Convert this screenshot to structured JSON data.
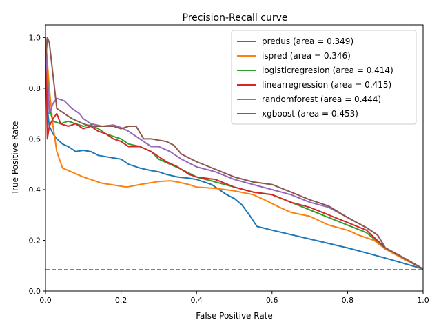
{
  "chart_data": {
    "type": "line",
    "title": "Precision-Recall curve",
    "xlabel": "False Positive Rate",
    "ylabel": "True Positive Rate",
    "xlim": [
      0,
      1
    ],
    "ylim": [
      0,
      1.05
    ],
    "xticks": [
      "0.0",
      "0.2",
      "0.4",
      "0.6",
      "0.8",
      "1.0"
    ],
    "yticks": [
      "0.0",
      "0.2",
      "0.4",
      "0.6",
      "0.8",
      "1.0"
    ],
    "grid": false,
    "legend_position": "top-right",
    "baseline": {
      "y": 0.085,
      "color": "#808080",
      "style": "dashed"
    },
    "series": [
      {
        "name": "predus (area = 0.349)",
        "color": "#1f77b4",
        "points": [
          [
            0.0,
            1.0
          ],
          [
            0.005,
            0.72
          ],
          [
            0.01,
            0.65
          ],
          [
            0.02,
            0.62
          ],
          [
            0.03,
            0.6
          ],
          [
            0.045,
            0.58
          ],
          [
            0.06,
            0.57
          ],
          [
            0.07,
            0.56
          ],
          [
            0.08,
            0.55
          ],
          [
            0.1,
            0.555
          ],
          [
            0.12,
            0.55
          ],
          [
            0.14,
            0.535
          ],
          [
            0.16,
            0.53
          ],
          [
            0.18,
            0.525
          ],
          [
            0.2,
            0.52
          ],
          [
            0.22,
            0.5
          ],
          [
            0.25,
            0.485
          ],
          [
            0.28,
            0.475
          ],
          [
            0.3,
            0.47
          ],
          [
            0.32,
            0.46
          ],
          [
            0.35,
            0.45
          ],
          [
            0.38,
            0.445
          ],
          [
            0.4,
            0.44
          ],
          [
            0.42,
            0.43
          ],
          [
            0.44,
            0.42
          ],
          [
            0.46,
            0.4
          ],
          [
            0.48,
            0.38
          ],
          [
            0.5,
            0.365
          ],
          [
            0.52,
            0.34
          ],
          [
            0.54,
            0.3
          ],
          [
            0.56,
            0.255
          ],
          [
            0.6,
            0.24
          ],
          [
            0.7,
            0.205
          ],
          [
            0.8,
            0.17
          ],
          [
            0.9,
            0.13
          ],
          [
            1.0,
            0.087
          ]
        ]
      },
      {
        "name": "ispred (area = 0.346)",
        "color": "#ff7f0e",
        "points": [
          [
            0.0,
            1.0
          ],
          [
            0.01,
            0.8
          ],
          [
            0.02,
            0.65
          ],
          [
            0.03,
            0.55
          ],
          [
            0.045,
            0.485
          ],
          [
            0.1,
            0.45
          ],
          [
            0.15,
            0.425
          ],
          [
            0.215,
            0.41
          ],
          [
            0.25,
            0.42
          ],
          [
            0.3,
            0.432
          ],
          [
            0.33,
            0.435
          ],
          [
            0.35,
            0.43
          ],
          [
            0.38,
            0.42
          ],
          [
            0.4,
            0.41
          ],
          [
            0.45,
            0.405
          ],
          [
            0.5,
            0.395
          ],
          [
            0.55,
            0.38
          ],
          [
            0.58,
            0.36
          ],
          [
            0.62,
            0.33
          ],
          [
            0.65,
            0.31
          ],
          [
            0.7,
            0.295
          ],
          [
            0.75,
            0.26
          ],
          [
            0.8,
            0.24
          ],
          [
            0.83,
            0.22
          ],
          [
            0.87,
            0.2
          ],
          [
            0.9,
            0.165
          ],
          [
            0.95,
            0.125
          ],
          [
            1.0,
            0.087
          ]
        ]
      },
      {
        "name": "logisticregresion (area = 0.414)",
        "color": "#2ca02c",
        "points": [
          [
            0.0,
            1.0
          ],
          [
            0.01,
            0.72
          ],
          [
            0.02,
            0.67
          ],
          [
            0.04,
            0.66
          ],
          [
            0.06,
            0.67
          ],
          [
            0.08,
            0.66
          ],
          [
            0.1,
            0.65
          ],
          [
            0.12,
            0.655
          ],
          [
            0.14,
            0.64
          ],
          [
            0.16,
            0.62
          ],
          [
            0.18,
            0.61
          ],
          [
            0.2,
            0.6
          ],
          [
            0.22,
            0.58
          ],
          [
            0.25,
            0.57
          ],
          [
            0.28,
            0.55
          ],
          [
            0.3,
            0.52
          ],
          [
            0.33,
            0.5
          ],
          [
            0.36,
            0.48
          ],
          [
            0.4,
            0.45
          ],
          [
            0.45,
            0.43
          ],
          [
            0.5,
            0.41
          ],
          [
            0.55,
            0.39
          ],
          [
            0.6,
            0.38
          ],
          [
            0.65,
            0.35
          ],
          [
            0.7,
            0.32
          ],
          [
            0.75,
            0.29
          ],
          [
            0.8,
            0.26
          ],
          [
            0.85,
            0.23
          ],
          [
            0.9,
            0.17
          ],
          [
            0.95,
            0.13
          ],
          [
            1.0,
            0.087
          ]
        ]
      },
      {
        "name": "linearregression (area = 0.415)",
        "color": "#d62728",
        "points": [
          [
            0.0,
            1.0
          ],
          [
            0.005,
            0.6
          ],
          [
            0.01,
            0.65
          ],
          [
            0.02,
            0.68
          ],
          [
            0.03,
            0.7
          ],
          [
            0.04,
            0.66
          ],
          [
            0.06,
            0.65
          ],
          [
            0.08,
            0.66
          ],
          [
            0.1,
            0.64
          ],
          [
            0.12,
            0.65
          ],
          [
            0.14,
            0.63
          ],
          [
            0.16,
            0.62
          ],
          [
            0.18,
            0.6
          ],
          [
            0.2,
            0.59
          ],
          [
            0.22,
            0.57
          ],
          [
            0.25,
            0.57
          ],
          [
            0.28,
            0.55
          ],
          [
            0.3,
            0.53
          ],
          [
            0.32,
            0.51
          ],
          [
            0.35,
            0.49
          ],
          [
            0.38,
            0.46
          ],
          [
            0.4,
            0.45
          ],
          [
            0.45,
            0.44
          ],
          [
            0.5,
            0.41
          ],
          [
            0.55,
            0.39
          ],
          [
            0.6,
            0.38
          ],
          [
            0.65,
            0.35
          ],
          [
            0.7,
            0.33
          ],
          [
            0.75,
            0.3
          ],
          [
            0.8,
            0.27
          ],
          [
            0.85,
            0.24
          ],
          [
            0.9,
            0.17
          ],
          [
            0.95,
            0.13
          ],
          [
            1.0,
            0.087
          ]
        ]
      },
      {
        "name": "randomforest (area = 0.444)",
        "color": "#9467bd",
        "points": [
          [
            0.0,
            1.0
          ],
          [
            0.005,
            0.85
          ],
          [
            0.01,
            0.7
          ],
          [
            0.02,
            0.74
          ],
          [
            0.03,
            0.76
          ],
          [
            0.05,
            0.75
          ],
          [
            0.07,
            0.72
          ],
          [
            0.09,
            0.7
          ],
          [
            0.1,
            0.68
          ],
          [
            0.12,
            0.66
          ],
          [
            0.15,
            0.65
          ],
          [
            0.18,
            0.655
          ],
          [
            0.2,
            0.645
          ],
          [
            0.22,
            0.63
          ],
          [
            0.25,
            0.6
          ],
          [
            0.28,
            0.57
          ],
          [
            0.3,
            0.57
          ],
          [
            0.33,
            0.55
          ],
          [
            0.36,
            0.52
          ],
          [
            0.4,
            0.49
          ],
          [
            0.45,
            0.47
          ],
          [
            0.5,
            0.44
          ],
          [
            0.55,
            0.42
          ],
          [
            0.6,
            0.4
          ],
          [
            0.65,
            0.38
          ],
          [
            0.7,
            0.35
          ],
          [
            0.75,
            0.33
          ],
          [
            0.8,
            0.29
          ],
          [
            0.85,
            0.25
          ],
          [
            0.88,
            0.22
          ],
          [
            0.9,
            0.17
          ],
          [
            0.95,
            0.13
          ],
          [
            1.0,
            0.087
          ]
        ]
      },
      {
        "name": "xgboost (area = 0.453)",
        "color": "#8c564b",
        "points": [
          [
            0.0,
            0.9
          ],
          [
            0.005,
            1.0
          ],
          [
            0.01,
            0.98
          ],
          [
            0.02,
            0.85
          ],
          [
            0.03,
            0.72
          ],
          [
            0.05,
            0.7
          ],
          [
            0.07,
            0.68
          ],
          [
            0.1,
            0.66
          ],
          [
            0.12,
            0.65
          ],
          [
            0.15,
            0.65
          ],
          [
            0.18,
            0.65
          ],
          [
            0.2,
            0.64
          ],
          [
            0.22,
            0.65
          ],
          [
            0.24,
            0.65
          ],
          [
            0.26,
            0.6
          ],
          [
            0.28,
            0.6
          ],
          [
            0.3,
            0.595
          ],
          [
            0.32,
            0.59
          ],
          [
            0.34,
            0.575
          ],
          [
            0.36,
            0.54
          ],
          [
            0.4,
            0.51
          ],
          [
            0.45,
            0.48
          ],
          [
            0.5,
            0.45
          ],
          [
            0.55,
            0.43
          ],
          [
            0.6,
            0.42
          ],
          [
            0.65,
            0.39
          ],
          [
            0.7,
            0.36
          ],
          [
            0.75,
            0.335
          ],
          [
            0.8,
            0.29
          ],
          [
            0.85,
            0.25
          ],
          [
            0.88,
            0.22
          ],
          [
            0.9,
            0.17
          ],
          [
            0.95,
            0.13
          ],
          [
            1.0,
            0.087
          ]
        ]
      }
    ]
  }
}
